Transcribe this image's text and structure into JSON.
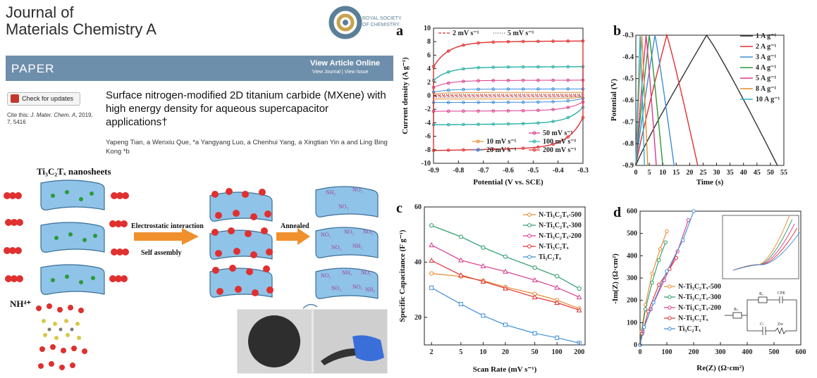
{
  "header": {
    "journal_line1": "Journal of",
    "journal_line2": "Materials Chemistry A",
    "publisher_logo_text": "ROYAL SOCIETY OF CHEMISTRY",
    "section": "PAPER",
    "view_online": "View Article Online",
    "view_journal": "View Journal | View Issue",
    "check_updates": "Check for updates",
    "cite_prefix": "Cite this: ",
    "cite_journal": "J. Mater. Chem. A",
    "cite_rest": ", 2019, 7, 5416"
  },
  "article": {
    "title": "Surface nitrogen-modified 2D titanium carbide (MXene) with high energy density for aqueous supercapacitor applications†",
    "authors": "Yapeng Tian, a Wenxiu Que, *a Yangyang Luo, a Chenhui Yang, a Xingtian Yin a and Ling Bing Kong *b"
  },
  "schematic": {
    "title": "Ti₃C₂Tₓ nanosheets",
    "step1_top": "Electrostatic interaction",
    "step1_bottom": "Self assembly",
    "step2": "Annealed",
    "ion_label": "NH⁴⁺",
    "group_labels": [
      "NH₂",
      "NO₂",
      "NO₂",
      "NO₃",
      "NO₂",
      "NO₂",
      "NO₂",
      "NH₂",
      "NO₂",
      "NH₂",
      "NO₂",
      "NO₂",
      "NO₂",
      "NH₂"
    ],
    "colors": {
      "sheet": "#8fc3e8",
      "ion": "#e03030",
      "anion": "#2a9a3a",
      "arrow": "#f0902c"
    }
  },
  "chart_data": [
    {
      "panel": "a",
      "type": "line",
      "xlabel": "Potential  (V vs. SCE)",
      "ylabel": "Current density (A g⁻¹)",
      "xlim": [
        -0.9,
        -0.3
      ],
      "ylim": [
        -10,
        10
      ],
      "xticks": [
        -0.9,
        -0.8,
        -0.7,
        -0.6,
        -0.5,
        -0.4,
        -0.3
      ],
      "yticks": [
        -10,
        -8,
        -6,
        -4,
        -2,
        0,
        2,
        4,
        6,
        8,
        10
      ],
      "series": [
        {
          "name": "2 mV s⁻¹",
          "color": "#e03030",
          "amp": 0.1
        },
        {
          "name": "5 mV s⁻¹",
          "color": "#555555",
          "amp": 0.25
        },
        {
          "name": "10 mV s⁻¹",
          "color": "#e58a2e",
          "amp": 0.5
        },
        {
          "name": "20 mV s⁻¹",
          "color": "#3b8ed8",
          "amp": 1.0
        },
        {
          "name": "50 mV s⁻¹",
          "color": "#d83a8a",
          "amp": 2.3
        },
        {
          "name": "100 mV s⁻¹",
          "color": "#2bb0a6",
          "amp": 4.3
        },
        {
          "name": "200 mV s⁻¹",
          "color": "#e03030",
          "amp": 8.1
        }
      ]
    },
    {
      "panel": "b",
      "type": "line",
      "xlabel": "Time (s)",
      "ylabel": "Potential (V)",
      "xlim": [
        0,
        55
      ],
      "ylim": [
        -0.9,
        -0.3
      ],
      "xticks": [
        0,
        5,
        10,
        15,
        20,
        25,
        30,
        35,
        40,
        45,
        50,
        55
      ],
      "yticks": [
        -0.9,
        -0.8,
        -0.7,
        -0.6,
        -0.5,
        -0.4,
        -0.3
      ],
      "series": [
        {
          "name": "1 A g⁻¹",
          "color": "#333333",
          "peak": 26.3,
          "end": 52.6
        },
        {
          "name": "2 A g⁻¹",
          "color": "#e03030",
          "peak": 11.5,
          "end": 23.0
        },
        {
          "name": "3 A g⁻¹",
          "color": "#3b8ed8",
          "peak": 7.1,
          "end": 14.2
        },
        {
          "name": "4 A g⁻¹",
          "color": "#2a9a3a",
          "peak": 5.0,
          "end": 10.0
        },
        {
          "name": "5 A g⁻¹",
          "color": "#d83a8a",
          "peak": 3.8,
          "end": 7.6
        },
        {
          "name": "8 A g⁻¹",
          "color": "#e58a2e",
          "peak": 2.2,
          "end": 4.4
        },
        {
          "name": "10 A g⁻¹",
          "color": "#2bb0c8",
          "peak": 1.6,
          "end": 3.2
        }
      ]
    },
    {
      "panel": "c",
      "type": "line",
      "xlabel": "Scan Rate  (mV s⁻¹)",
      "ylabel": "Specific Capacitance (F g⁻¹)",
      "xscale": "log",
      "x": [
        2,
        5,
        10,
        20,
        50,
        100,
        200
      ],
      "xticks": [
        2,
        5,
        10,
        20,
        50,
        100,
        200
      ],
      "ylim": [
        10,
        60
      ],
      "yticks": [
        20,
        40,
        60
      ],
      "series": [
        {
          "name": "N-Ti₃C₂Tₓ-500",
          "color": "#e58a2e",
          "values": [
            35.9,
            34.8,
            33.3,
            31.0,
            28.5,
            26.2,
            23.2
          ]
        },
        {
          "name": "N-Ti₃C₂Tₓ-300",
          "color": "#2a9a6a",
          "values": [
            53.3,
            49.2,
            45.3,
            42.0,
            38.0,
            34.9,
            30.4
          ]
        },
        {
          "name": "N-Ti₃C₂Tₓ-200",
          "color": "#d83a8a",
          "values": [
            46.2,
            40.7,
            38.6,
            36.6,
            33.5,
            30.8,
            27.3
          ]
        },
        {
          "name": "N-Ti₃C₂Tₓ",
          "color": "#e03030",
          "values": [
            40.6,
            35.3,
            33.0,
            30.5,
            27.3,
            25.3,
            22.6
          ]
        },
        {
          "name": "Ti₃C₂Tₓ",
          "color": "#3b8ed8",
          "values": [
            30.7,
            24.8,
            20.6,
            17.3,
            14.2,
            12.6,
            10.7
          ]
        }
      ]
    },
    {
      "panel": "d",
      "type": "line",
      "xlabel": "Re(Z) (Ω·cm²)",
      "ylabel": "-Im(Z) (Ω·cm²)",
      "xlim": [
        0,
        600
      ],
      "ylim": [
        0,
        600
      ],
      "xticks": [
        0,
        100,
        200,
        300,
        400,
        500,
        600
      ],
      "yticks": [
        0,
        100,
        200,
        300,
        400,
        500,
        600
      ],
      "series": [
        {
          "name": "N-Ti₃C₂Tₓ-500",
          "color": "#e58a2e",
          "x": [
            0,
            5,
            20,
            45,
            75,
            100
          ],
          "y": [
            0,
            60,
            180,
            320,
            430,
            510
          ]
        },
        {
          "name": "N-Ti₃C₂Tₓ-300",
          "color": "#2a9a6a",
          "x": [
            0,
            5,
            20,
            45,
            70,
            95
          ],
          "y": [
            0,
            50,
            160,
            280,
            380,
            460
          ]
        },
        {
          "name": "N-Ti₃C₂Tₓ-200",
          "color": "#d83a8a",
          "x": [
            0,
            10,
            40,
            90,
            140,
            180
          ],
          "y": [
            0,
            60,
            160,
            290,
            420,
            560
          ]
        },
        {
          "name": "N-Ti₃C₂Tₓ",
          "color": "#e03030",
          "x": [
            0,
            8,
            30,
            70,
            110,
            135
          ],
          "y": [
            0,
            50,
            150,
            270,
            340,
            390
          ]
        },
        {
          "name": "Ti₃C₂Tₓ",
          "color": "#3b8ed8",
          "x": [
            0,
            15,
            50,
            100,
            160,
            200
          ],
          "y": [
            0,
            80,
            190,
            330,
            470,
            600
          ]
        }
      ],
      "circuit_labels": [
        "Rₛ",
        "Rₐ",
        "CPE",
        "Cₗ",
        "Zw"
      ]
    }
  ]
}
